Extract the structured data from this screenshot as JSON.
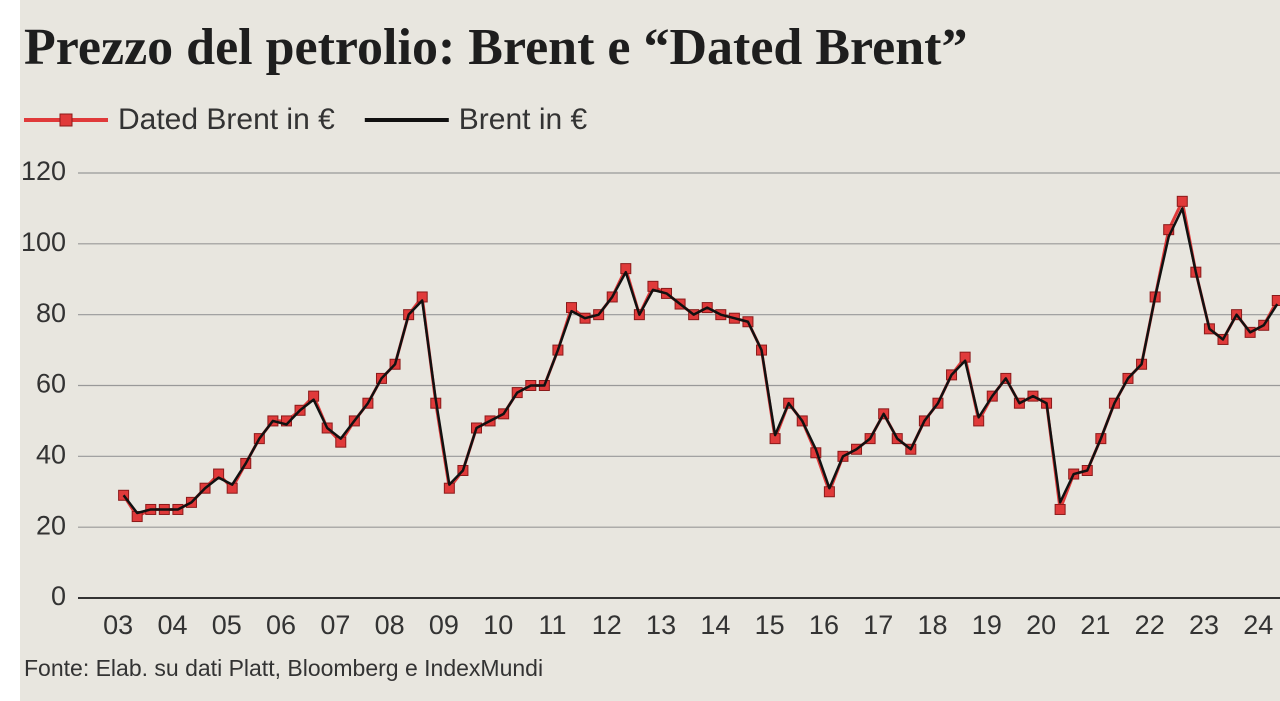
{
  "chart_data": {
    "type": "line",
    "title": "Prezzo del petrolio: Brent e “Dated Brent”",
    "source": "Fonte: Elab. su dati Platt, Bloomberg e IndexMundi",
    "x": [
      3.1,
      3.35,
      3.6,
      3.85,
      4.1,
      4.35,
      4.6,
      4.85,
      5.1,
      5.35,
      5.6,
      5.85,
      6.1,
      6.35,
      6.6,
      6.85,
      7.1,
      7.35,
      7.6,
      7.85,
      8.1,
      8.35,
      8.6,
      8.85,
      9.1,
      9.35,
      9.6,
      9.85,
      10.1,
      10.35,
      10.6,
      10.85,
      11.1,
      11.35,
      11.6,
      11.85,
      12.1,
      12.35,
      12.6,
      12.85,
      13.1,
      13.35,
      13.6,
      13.85,
      14.1,
      14.35,
      14.6,
      14.85,
      15.1,
      15.35,
      15.6,
      15.85,
      16.1,
      16.35,
      16.6,
      16.85,
      17.1,
      17.35,
      17.6,
      17.85,
      18.1,
      18.35,
      18.6,
      18.85,
      19.1,
      19.35,
      19.6,
      19.85,
      20.1,
      20.35,
      20.6,
      20.85,
      21.1,
      21.35,
      21.6,
      21.85,
      22.1,
      22.35,
      22.6,
      22.85,
      23.1,
      23.35,
      23.6,
      23.85,
      24.1,
      24.35
    ],
    "series": [
      {
        "name": "Dated Brent in €",
        "color": "#e03a3a",
        "marker": "square",
        "values": [
          29,
          23,
          25,
          25,
          25,
          27,
          31,
          35,
          31,
          38,
          45,
          50,
          50,
          53,
          57,
          48,
          44,
          50,
          55,
          62,
          66,
          80,
          85,
          55,
          31,
          36,
          48,
          50,
          52,
          58,
          60,
          60,
          70,
          82,
          79,
          80,
          85,
          93,
          80,
          88,
          86,
          83,
          80,
          82,
          80,
          79,
          78,
          70,
          45,
          55,
          50,
          41,
          30,
          40,
          42,
          45,
          52,
          45,
          42,
          50,
          55,
          63,
          68,
          50,
          57,
          62,
          55,
          57,
          55,
          25,
          35,
          36,
          45,
          55,
          62,
          66,
          85,
          104,
          112,
          92,
          76,
          73,
          80,
          75,
          77,
          84
        ]
      },
      {
        "name": "Brent in €",
        "color": "#111111",
        "values": [
          29,
          24,
          25,
          25,
          25,
          27,
          31,
          34,
          32,
          38,
          45,
          50,
          49,
          53,
          56,
          48,
          45,
          50,
          55,
          62,
          66,
          80,
          84,
          56,
          32,
          36,
          48,
          50,
          52,
          58,
          60,
          60,
          70,
          81,
          79,
          80,
          85,
          92,
          80,
          87,
          86,
          83,
          80,
          82,
          80,
          79,
          78,
          70,
          46,
          55,
          50,
          42,
          31,
          40,
          42,
          45,
          52,
          45,
          42,
          50,
          55,
          63,
          67,
          51,
          57,
          62,
          55,
          57,
          55,
          27,
          35,
          36,
          45,
          55,
          62,
          66,
          85,
          102,
          110,
          92,
          76,
          73,
          80,
          75,
          77,
          83
        ]
      }
    ],
    "xlim": [
      2.26,
      24.4
    ],
    "xticks": [
      {
        "value": 3,
        "label": "03"
      },
      {
        "value": 4,
        "label": "04"
      },
      {
        "value": 5,
        "label": "05"
      },
      {
        "value": 6,
        "label": "06"
      },
      {
        "value": 7,
        "label": "07"
      },
      {
        "value": 8,
        "label": "08"
      },
      {
        "value": 9,
        "label": "09"
      },
      {
        "value": 10,
        "label": "10"
      },
      {
        "value": 11,
        "label": "11"
      },
      {
        "value": 12,
        "label": "12"
      },
      {
        "value": 13,
        "label": "13"
      },
      {
        "value": 14,
        "label": "14"
      },
      {
        "value": 15,
        "label": "15"
      },
      {
        "value": 16,
        "label": "16"
      },
      {
        "value": 17,
        "label": "17"
      },
      {
        "value": 18,
        "label": "18"
      },
      {
        "value": 19,
        "label": "19"
      },
      {
        "value": 20,
        "label": "20"
      },
      {
        "value": 21,
        "label": "21"
      },
      {
        "value": 22,
        "label": "22"
      },
      {
        "value": 23,
        "label": "23"
      },
      {
        "value": 24,
        "label": "24"
      }
    ],
    "ylim": [
      0,
      120
    ],
    "yticks": [
      0,
      20,
      40,
      60,
      80,
      100,
      120
    ],
    "grid": true
  }
}
